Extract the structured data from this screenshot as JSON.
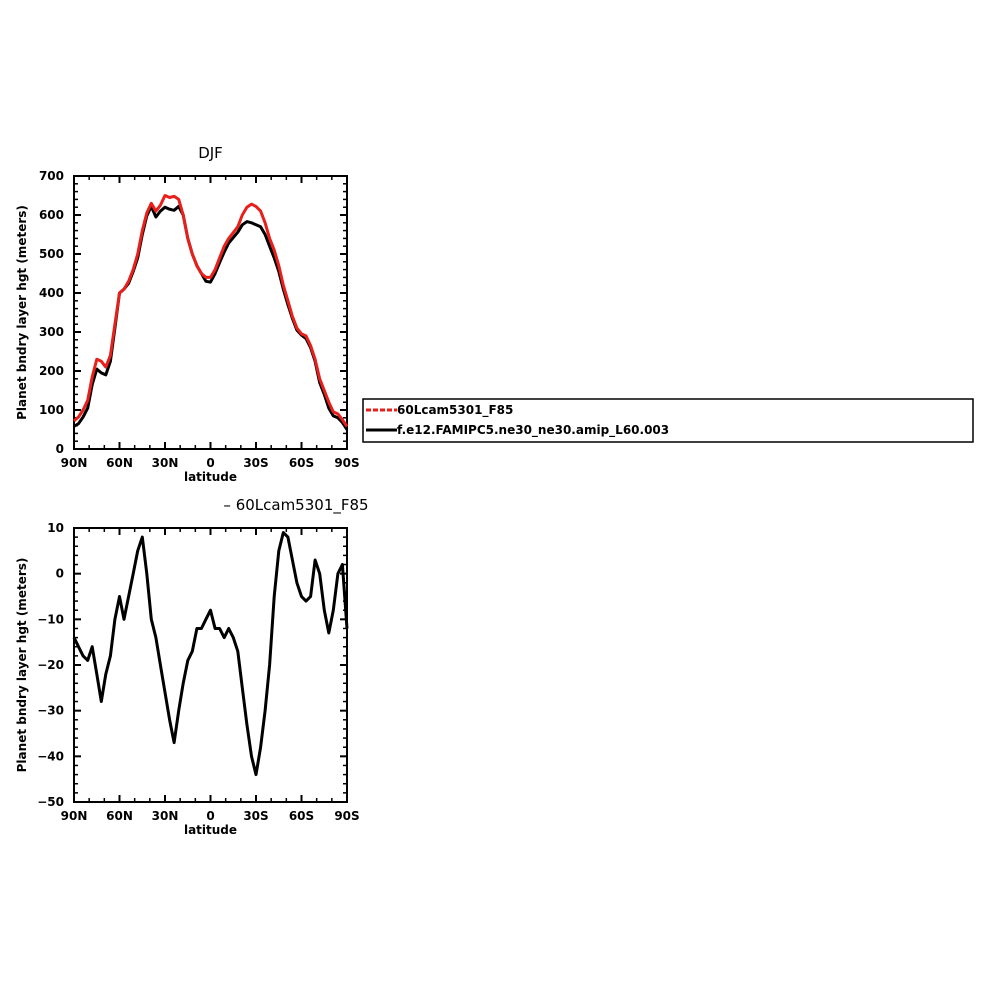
{
  "colors": {
    "red": "#e8201c",
    "black": "#000000"
  },
  "legend": {
    "items": [
      {
        "label": "60Lcam5301_F85",
        "color": "#e8201c",
        "dash": true
      },
      {
        "label": "f.e12.FAMIPC5.ne30_ne30.amip_L60.003",
        "color": "#000000",
        "dash": false
      }
    ]
  },
  "chart_data": [
    {
      "type": "line",
      "title": "DJF",
      "xlabel": "latitude",
      "ylabel": "Planet bndry layer hgt (meters)",
      "xlim": [
        90,
        -90
      ],
      "ylim": [
        0,
        700
      ],
      "x_ticks": [
        90,
        60,
        30,
        0,
        -30,
        -60,
        -90
      ],
      "x_tick_labels": [
        "90N",
        "60N",
        "30N",
        "0",
        "30S",
        "60S",
        "90S"
      ],
      "y_ticks": [
        0,
        100,
        200,
        300,
        400,
        500,
        600,
        700
      ],
      "y_tick_labels": [
        "0",
        "100",
        "200",
        "300",
        "400",
        "500",
        "600",
        "700"
      ],
      "x": [
        90,
        87,
        84,
        81,
        78,
        75,
        72,
        69,
        66,
        63,
        60,
        57,
        54,
        51,
        48,
        45,
        42,
        39,
        36,
        33,
        30,
        27,
        24,
        21,
        18,
        15,
        12,
        9,
        6,
        3,
        0,
        -3,
        -6,
        -9,
        -12,
        -15,
        -18,
        -21,
        -24,
        -27,
        -30,
        -33,
        -36,
        -39,
        -42,
        -45,
        -48,
        -51,
        -54,
        -57,
        -60,
        -63,
        -66,
        -69,
        -72,
        -75,
        -78,
        -81,
        -84,
        -87,
        -90
      ],
      "series": [
        {
          "name": "60Lcam5301_F85",
          "color": "#e8201c",
          "values": [
            72,
            82,
            100,
            125,
            185,
            230,
            225,
            210,
            240,
            320,
            400,
            410,
            430,
            460,
            500,
            560,
            605,
            630,
            610,
            625,
            650,
            645,
            648,
            640,
            600,
            540,
            500,
            470,
            450,
            440,
            440,
            460,
            490,
            520,
            540,
            555,
            570,
            600,
            620,
            628,
            622,
            610,
            580,
            540,
            510,
            470,
            420,
            380,
            340,
            310,
            295,
            290,
            265,
            230,
            180,
            150,
            120,
            95,
            90,
            75,
            58
          ]
        },
        {
          "name": "f.e12.FAMIPC5.ne30_ne30.amip_L60.003",
          "color": "#000000",
          "values": [
            58,
            65,
            82,
            105,
            165,
            205,
            195,
            190,
            225,
            310,
            400,
            410,
            425,
            455,
            490,
            550,
            598,
            622,
            595,
            610,
            620,
            615,
            612,
            622,
            600,
            540,
            500,
            470,
            450,
            430,
            428,
            450,
            478,
            505,
            528,
            542,
            556,
            575,
            583,
            580,
            575,
            570,
            550,
            520,
            490,
            455,
            410,
            370,
            335,
            305,
            292,
            283,
            260,
            225,
            170,
            140,
            105,
            85,
            80,
            68,
            50
          ]
        }
      ]
    },
    {
      "type": "line",
      "title": "– 60Lcam5301_F85",
      "xlabel": "latitude",
      "ylabel": "Planet bndry layer hgt (meters)",
      "xlim": [
        90,
        -90
      ],
      "ylim": [
        -50,
        10
      ],
      "x_ticks": [
        90,
        60,
        30,
        0,
        -30,
        -60,
        -90
      ],
      "x_tick_labels": [
        "90N",
        "60N",
        "30N",
        "0",
        "30S",
        "60S",
        "90S"
      ],
      "y_ticks": [
        -50,
        -40,
        -30,
        -20,
        -10,
        0,
        10
      ],
      "y_tick_labels": [
        "−50",
        "−40",
        "−30",
        "−20",
        "−10",
        "0",
        "10"
      ],
      "x": [
        90,
        87,
        84,
        81,
        78,
        75,
        72,
        69,
        66,
        63,
        60,
        57,
        54,
        51,
        48,
        45,
        42,
        39,
        36,
        33,
        30,
        27,
        24,
        21,
        18,
        15,
        12,
        9,
        6,
        3,
        0,
        -3,
        -6,
        -9,
        -12,
        -15,
        -18,
        -21,
        -24,
        -27,
        -30,
        -33,
        -36,
        -39,
        -42,
        -45,
        -48,
        -51,
        -54,
        -57,
        -60,
        -63,
        -66,
        -69,
        -72,
        -75,
        -78,
        -81,
        -84,
        -87,
        -90
      ],
      "series": [
        {
          "color": "#000000",
          "values": [
            -14,
            -16,
            -18,
            -19,
            -16,
            -22,
            -28,
            -22,
            -18,
            -10,
            -5,
            -10,
            -5,
            0,
            5,
            8,
            0,
            -10,
            -14,
            -20,
            -26,
            -32,
            -37,
            -30,
            -24,
            -19,
            -17,
            -12,
            -12,
            -10,
            -8,
            -12,
            -12,
            -14,
            -12,
            -14,
            -17,
            -25,
            -33,
            -40,
            -44,
            -38,
            -30,
            -20,
            -5,
            5,
            9,
            8,
            3,
            -2,
            -5,
            -6,
            -5,
            3,
            0,
            -8,
            -13,
            -8,
            0,
            2,
            -12
          ]
        }
      ]
    }
  ]
}
